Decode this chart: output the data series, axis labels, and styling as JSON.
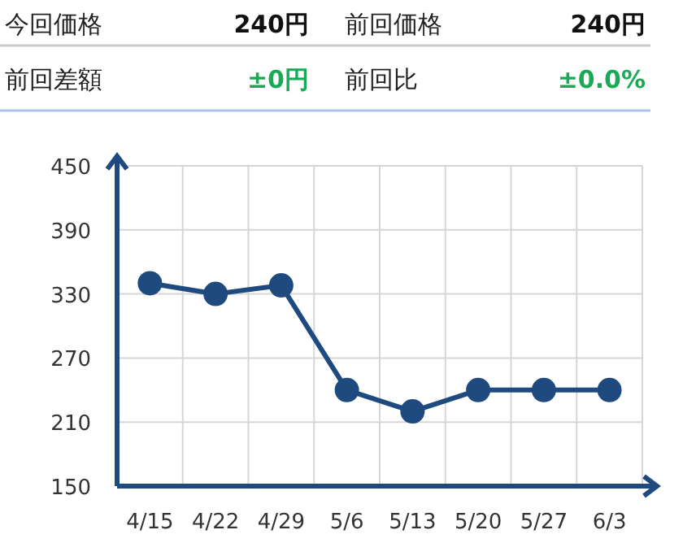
{
  "chart_data": [
    {
      "type": "other",
      "annotations": [
        "今回価格",
        "240円",
        "前回価格",
        "240円",
        "前回差額",
        "±0円",
        "前回比",
        "±0.0%"
      ],
      "colors": [
        "#222222",
        "#111111",
        "#222222",
        "#111111",
        "#222222",
        "#1aaa55",
        "#222222",
        "#1aaa55"
      ]
    },
    {
      "type": "line",
      "categories": [
        "4/15",
        "4/22",
        "4/29",
        "5/6",
        "5/13",
        "5/20",
        "5/27",
        "6/3"
      ],
      "series": [
        {
          "color": "#1f4a80",
          "values": [
            340,
            330,
            338,
            240,
            220,
            240,
            240,
            240
          ]
        }
      ],
      "ylim": [
        150,
        450
      ],
      "yticks": [
        150,
        210,
        270,
        330,
        390,
        450
      ],
      "grid": true,
      "marker": "circle",
      "line_style": "solid"
    }
  ]
}
